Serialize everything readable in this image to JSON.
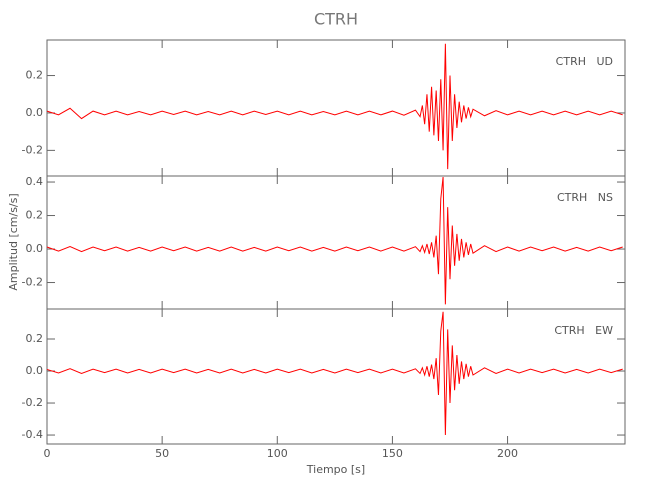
{
  "title": "CTRH",
  "x_label": "Tiempo [s]",
  "y_label": "Amplitud [cm/s/s]",
  "chart_data": [
    {
      "type": "line",
      "label": "CTRH   UD",
      "color": "#ff0000",
      "x": [
        0,
        5,
        10,
        15,
        20,
        25,
        30,
        35,
        40,
        45,
        50,
        55,
        60,
        65,
        70,
        75,
        80,
        85,
        90,
        95,
        100,
        105,
        110,
        115,
        120,
        125,
        130,
        135,
        140,
        145,
        150,
        155,
        160,
        162,
        163,
        164,
        165,
        166,
        167,
        168,
        169,
        170,
        171,
        172,
        173,
        174,
        175,
        176,
        177,
        178,
        179,
        180,
        181,
        182,
        183,
        184,
        185,
        190,
        195,
        200,
        205,
        210,
        215,
        220,
        225,
        230,
        235,
        240,
        245,
        250
      ],
      "values": [
        0.01,
        -0.01,
        0.025,
        -0.03,
        0.01,
        -0.01,
        0.01,
        -0.01,
        0.008,
        -0.01,
        0.01,
        -0.008,
        0.01,
        -0.01,
        0.008,
        -0.01,
        0.01,
        -0.01,
        0.01,
        -0.008,
        0.01,
        -0.01,
        0.01,
        -0.01,
        0.008,
        -0.01,
        0.01,
        -0.01,
        0.01,
        -0.01,
        0.01,
        -0.012,
        0.015,
        -0.02,
        0.04,
        -0.06,
        0.1,
        -0.1,
        0.14,
        -0.12,
        0.12,
        -0.15,
        0.18,
        -0.2,
        0.37,
        -0.3,
        0.2,
        -0.15,
        0.1,
        -0.08,
        0.06,
        -0.05,
        0.04,
        -0.03,
        0.03,
        -0.02,
        0.02,
        -0.015,
        0.012,
        -0.01,
        0.01,
        -0.01,
        0.01,
        -0.01,
        0.01,
        -0.01,
        0.01,
        -0.01,
        0.01,
        -0.01
      ],
      "xlim": [
        0,
        251
      ],
      "xticks": [
        0,
        50,
        100,
        150,
        200
      ],
      "ylim": [
        -0.337,
        0.39
      ],
      "yticks": [
        -0.2,
        {
          "value": 0,
          "label": "0.0"
        },
        0.2
      ]
    },
    {
      "type": "line",
      "label": "CTRH   NS",
      "color": "#ff0000",
      "x": [
        0,
        5,
        10,
        15,
        20,
        25,
        30,
        35,
        40,
        45,
        50,
        55,
        60,
        65,
        70,
        75,
        80,
        85,
        90,
        95,
        100,
        105,
        110,
        115,
        120,
        125,
        130,
        135,
        140,
        145,
        150,
        155,
        160,
        162,
        163,
        164,
        165,
        166,
        167,
        168,
        169,
        170,
        171,
        172,
        173,
        174,
        175,
        176,
        177,
        178,
        179,
        180,
        181,
        182,
        183,
        184,
        185,
        190,
        195,
        200,
        205,
        210,
        215,
        220,
        225,
        230,
        235,
        240,
        245,
        250
      ],
      "values": [
        0.012,
        -0.012,
        0.015,
        -0.015,
        0.012,
        -0.01,
        0.012,
        -0.012,
        0.01,
        -0.012,
        0.012,
        -0.01,
        0.012,
        -0.012,
        0.01,
        -0.012,
        0.012,
        -0.012,
        0.01,
        -0.012,
        0.012,
        -0.01,
        0.012,
        -0.012,
        0.01,
        -0.012,
        0.012,
        -0.01,
        0.012,
        -0.012,
        0.012,
        -0.012,
        0.014,
        -0.015,
        0.02,
        -0.02,
        0.03,
        -0.03,
        0.04,
        -0.05,
        0.08,
        -0.15,
        0.3,
        0.43,
        -0.33,
        0.25,
        -0.18,
        0.14,
        -0.1,
        0.09,
        -0.07,
        0.06,
        -0.05,
        0.04,
        -0.035,
        0.03,
        -0.025,
        0.02,
        -0.015,
        0.012,
        -0.012,
        0.012,
        -0.01,
        0.012,
        -0.012,
        0.01,
        -0.012,
        0.012,
        -0.01,
        0.012
      ],
      "xlim": [
        0,
        251
      ],
      "xticks": [
        0,
        50,
        100,
        150,
        200
      ],
      "ylim": [
        -0.358,
        0.436
      ],
      "yticks": [
        -0.2,
        {
          "value": 0,
          "label": "0.0"
        },
        0.2,
        0.4
      ]
    },
    {
      "type": "line",
      "label": "CTRH   EW",
      "color": "#ff0000",
      "x": [
        0,
        5,
        10,
        15,
        20,
        25,
        30,
        35,
        40,
        45,
        50,
        55,
        60,
        65,
        70,
        75,
        80,
        85,
        90,
        95,
        100,
        105,
        110,
        115,
        120,
        125,
        130,
        135,
        140,
        145,
        150,
        155,
        160,
        162,
        163,
        164,
        165,
        166,
        167,
        168,
        169,
        170,
        171,
        172,
        173,
        174,
        175,
        176,
        177,
        178,
        179,
        180,
        181,
        182,
        183,
        184,
        185,
        190,
        195,
        200,
        205,
        210,
        215,
        220,
        225,
        230,
        235,
        240,
        245,
        250
      ],
      "values": [
        0.01,
        -0.012,
        0.015,
        -0.015,
        0.012,
        -0.01,
        0.012,
        -0.012,
        0.01,
        -0.012,
        0.012,
        -0.01,
        0.012,
        -0.012,
        0.01,
        -0.012,
        0.012,
        -0.012,
        0.01,
        -0.012,
        0.012,
        -0.01,
        0.012,
        -0.012,
        0.01,
        -0.012,
        0.012,
        -0.01,
        0.012,
        -0.012,
        0.012,
        -0.012,
        0.014,
        -0.015,
        0.02,
        -0.025,
        0.03,
        -0.035,
        0.04,
        -0.05,
        0.08,
        -0.15,
        0.25,
        0.37,
        -0.4,
        0.26,
        -0.2,
        0.16,
        -0.12,
        0.1,
        -0.08,
        0.06,
        -0.05,
        0.045,
        -0.035,
        0.03,
        -0.025,
        0.02,
        -0.015,
        0.012,
        -0.012,
        0.012,
        -0.01,
        0.012,
        -0.012,
        0.01,
        -0.012,
        0.012,
        -0.01,
        0.012
      ],
      "xlim": [
        0,
        251
      ],
      "xticks": [
        0,
        50,
        100,
        150,
        200
      ],
      "ylim": [
        -0.456,
        0.3875
      ],
      "yticks": [
        -0.4,
        -0.2,
        {
          "value": 0,
          "label": "0.0"
        },
        0.2
      ]
    }
  ]
}
